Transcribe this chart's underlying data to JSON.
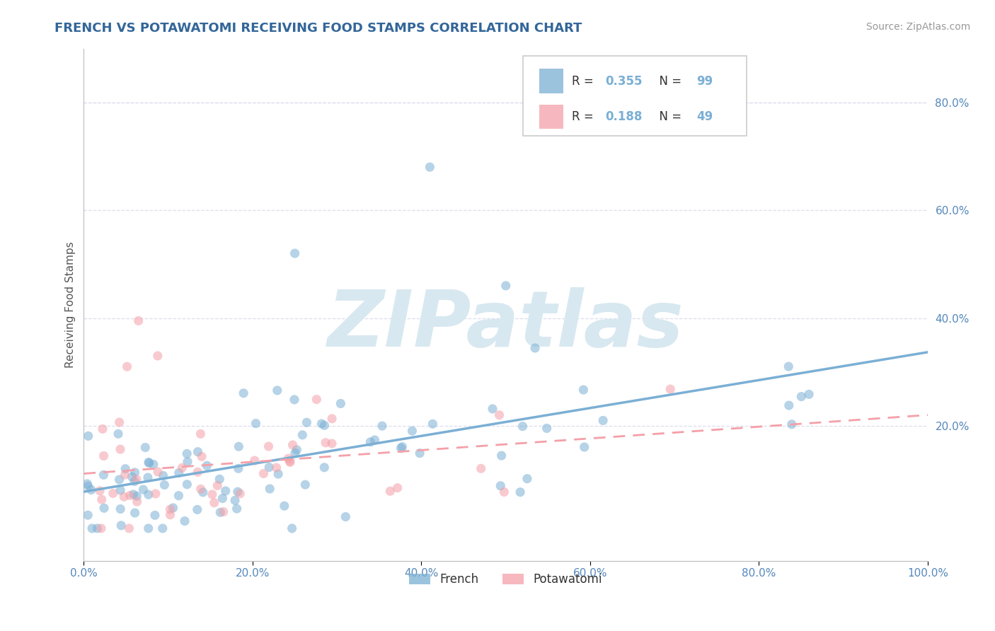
{
  "title": "FRENCH VS POTAWATOMI RECEIVING FOOD STAMPS CORRELATION CHART",
  "source_text": "Source: ZipAtlas.com",
  "ylabel": "Receiving Food Stamps",
  "xlim": [
    0.0,
    1.0
  ],
  "ylim": [
    -0.05,
    0.9
  ],
  "xticks": [
    0.0,
    0.2,
    0.4,
    0.6,
    0.8,
    1.0
  ],
  "xtick_labels": [
    "0.0%",
    "20.0%",
    "40.0%",
    "60.0%",
    "80.0%",
    "100.0%"
  ],
  "yticks": [
    0.2,
    0.4,
    0.6,
    0.8
  ],
  "ytick_labels": [
    "20.0%",
    "40.0%",
    "60.0%",
    "80.0%"
  ],
  "french_color": "#7BAFD4",
  "potawatomi_color": "#F4A0A8",
  "french_R": 0.355,
  "french_N": 99,
  "potawatomi_R": 0.188,
  "potawatomi_N": 49,
  "title_color": "#336699",
  "axis_tick_color": "#5588BB",
  "watermark_color": "#D8E8F0",
  "background_color": "#FFFFFF",
  "grid_color": "#DDDDEE"
}
